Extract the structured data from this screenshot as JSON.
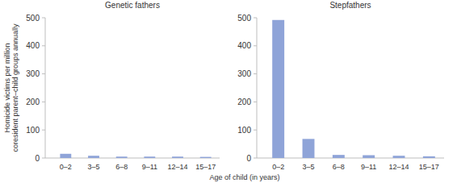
{
  "chart_data": [
    {
      "type": "bar",
      "title": "Genetic fathers",
      "y_label": "Homicide victims per million coresident parent–child groups annually",
      "x_label": "Age of child (in years)",
      "categories": [
        "0–2",
        "3–5",
        "6–8",
        "9–11",
        "12–14",
        "15–17"
      ],
      "values": [
        15,
        8,
        5,
        5,
        5,
        4
      ],
      "color": "#8fa4d8",
      "ylim": [
        0,
        500
      ],
      "yticks": [
        0,
        100,
        200,
        300,
        400,
        500
      ],
      "grid": false
    },
    {
      "type": "bar",
      "title": "Stepfathers",
      "categories": [
        "0–2",
        "3–5",
        "6–8",
        "9–11",
        "12–14",
        "15–17"
      ],
      "values": [
        492,
        68,
        11,
        10,
        8,
        6
      ],
      "color": "#8fa4d8",
      "ylim": [
        0,
        500
      ],
      "yticks": [
        0,
        100,
        200,
        300,
        400,
        500
      ],
      "grid": false
    }
  ]
}
